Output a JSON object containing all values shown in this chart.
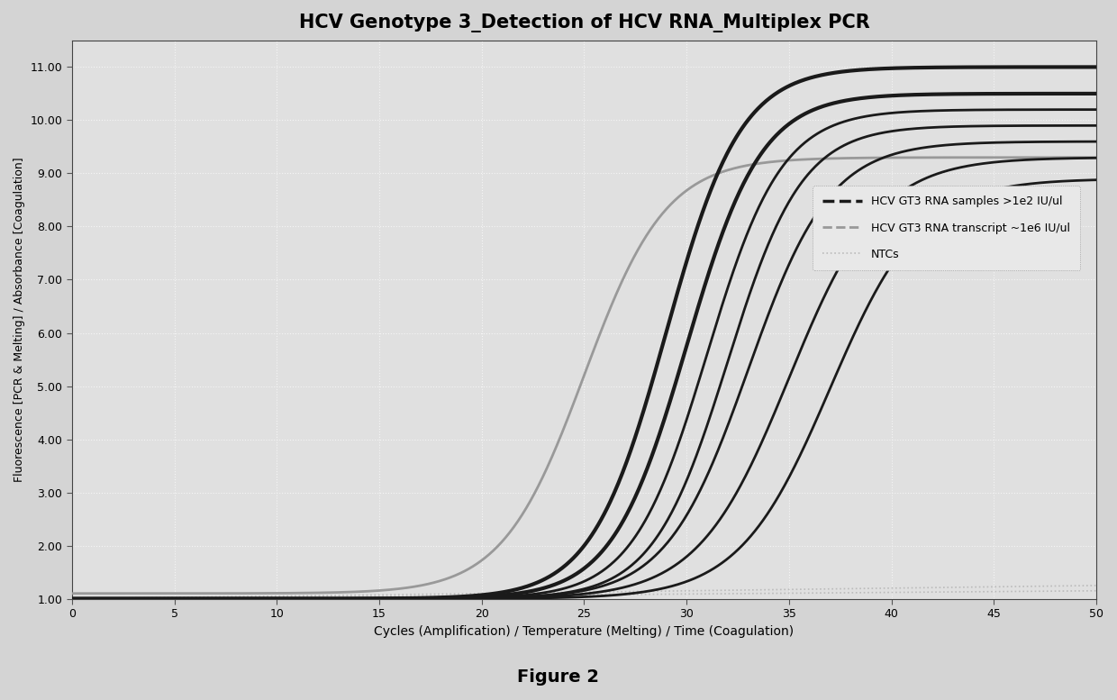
{
  "title": "HCV Genotype 3_Detection of HCV RNA_Multiplex PCR",
  "xlabel": "Cycles (Amplification) / Temperature (Melting) / Time (Coagulation)",
  "ylabel": "Fluorescence [PCR & Melting] / Absorbance [Coagulation]",
  "xlim": [
    0,
    50
  ],
  "ylim": [
    1.0,
    11.5
  ],
  "yticks": [
    1.0,
    2.0,
    3.0,
    4.0,
    5.0,
    6.0,
    7.0,
    8.0,
    9.0,
    10.0,
    11.0
  ],
  "xticks": [
    0,
    5,
    10,
    15,
    20,
    25,
    30,
    35,
    40,
    45,
    50
  ],
  "figure_caption": "Figure 2",
  "outer_bg_color": "#d4d4d4",
  "plot_bg_color": "#e0e0e0",
  "grid_color": "#f5f5f5",
  "legend_labels": [
    "HCV GT3 RNA samples >1e2 IU/ul",
    "HCV GT3 RNA transcript ~1e6 IU/ul",
    "NTCs"
  ],
  "dark_sample_curves": {
    "midpoints": [
      29,
      30,
      31,
      32,
      33,
      35,
      37
    ],
    "slopes": [
      0.55,
      0.55,
      0.55,
      0.55,
      0.5,
      0.45,
      0.45
    ],
    "baselines": [
      1.0,
      1.0,
      1.0,
      1.0,
      1.0,
      1.0,
      1.0
    ],
    "plateaus": [
      11.0,
      10.5,
      10.2,
      9.9,
      9.6,
      9.3,
      8.9
    ]
  },
  "gray_transcript_curve": {
    "midpoint": 25,
    "slope": 0.5,
    "baseline": 1.1,
    "plateau": 9.3
  },
  "ntc_curves": {
    "values_at_50": [
      1.25,
      1.15
    ],
    "slopes_linear": [
      0.005,
      0.003
    ]
  }
}
